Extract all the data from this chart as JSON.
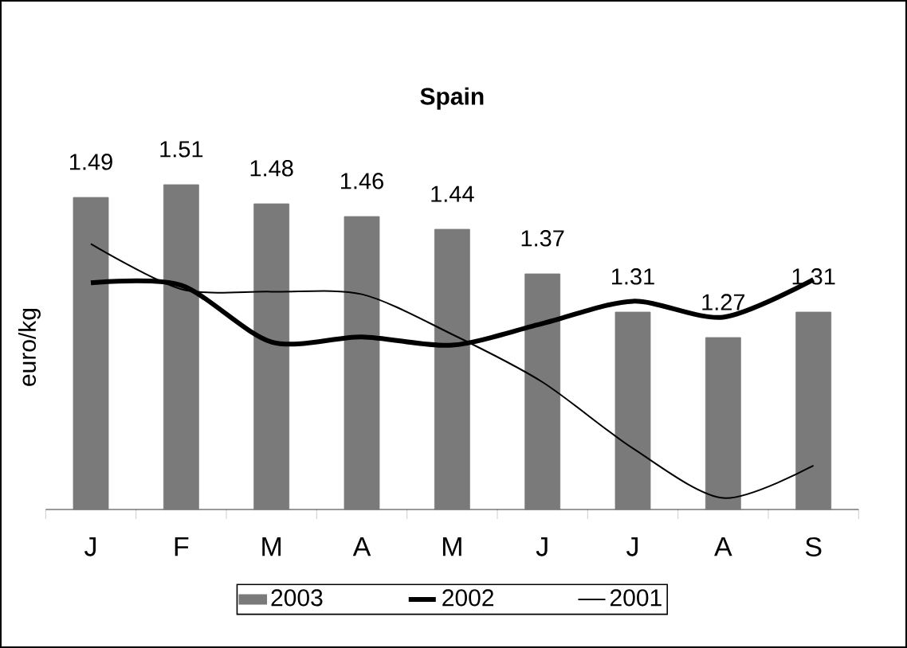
{
  "chart_data": {
    "type": "bar",
    "title": "Spain",
    "ylabel": "euro/kg",
    "categories": [
      "J",
      "F",
      "M",
      "A",
      "M",
      "J",
      "J",
      "A",
      "S"
    ],
    "series": [
      {
        "name": "2003",
        "color": "#7a7a7a",
        "values": [
          1.49,
          1.51,
          1.48,
          1.46,
          1.44,
          1.37,
          1.31,
          1.27,
          1.31
        ],
        "value_labels": [
          "1.49",
          "1.51",
          "1.48",
          "1.46",
          "1.44",
          "1.37",
          "1.31",
          "1.27",
          "1.31"
        ]
      },
      {
        "name": "2002",
        "type": "line",
        "color": "#000000",
        "values": [
          1.356,
          1.352,
          1.263,
          1.271,
          1.258,
          1.292,
          1.327,
          1.302,
          1.361
        ]
      },
      {
        "name": "2001",
        "type": "line",
        "color": "#000000",
        "values": [
          1.417,
          1.346,
          1.342,
          1.338,
          1.275,
          1.2,
          1.096,
          1.018,
          1.069
        ]
      }
    ],
    "ylim": [
      1.0,
      1.51
    ],
    "tick_labels": "x",
    "legend": "bottom",
    "grid": false,
    "marker": "none",
    "line_style": "solid"
  }
}
